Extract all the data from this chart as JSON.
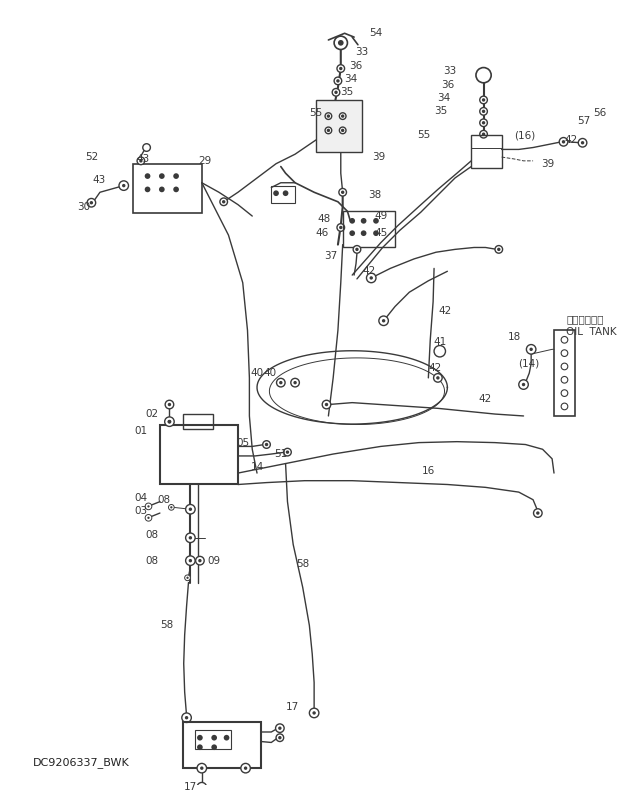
{
  "bg_color": "#ffffff",
  "line_color": "#3a3a3a",
  "fig_width": 6.2,
  "fig_height": 8.08,
  "dpi": 100,
  "watermark": "DC9206337_BWK"
}
